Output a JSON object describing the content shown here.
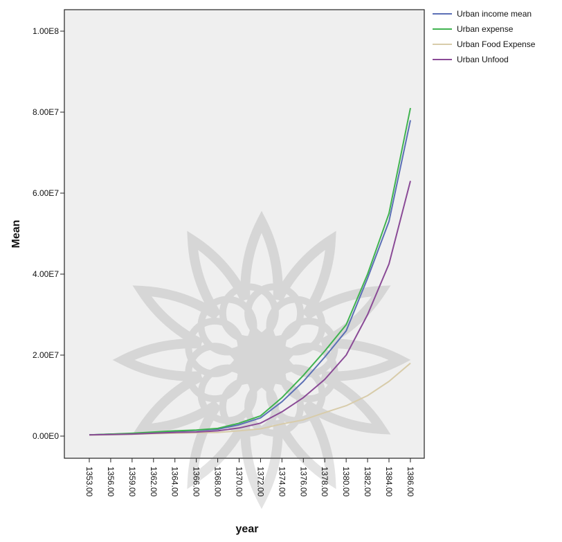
{
  "chart_data": {
    "type": "line",
    "title": "",
    "xlabel": "year",
    "ylabel": "Mean",
    "ylim": [
      0,
      100000000
    ],
    "y_ticks": [
      {
        "value": 0,
        "label": "0.00E0"
      },
      {
        "value": 20000000,
        "label": "2.00E7"
      },
      {
        "value": 40000000,
        "label": "4.00E7"
      },
      {
        "value": 60000000,
        "label": "6.00E7"
      },
      {
        "value": 80000000,
        "label": "8.00E7"
      },
      {
        "value": 100000000,
        "label": "1.00E8"
      }
    ],
    "x": [
      1353,
      1356,
      1359,
      1362,
      1364,
      1366,
      1368,
      1370,
      1372,
      1374,
      1376,
      1378,
      1380,
      1382,
      1384,
      1386
    ],
    "x_tick_labels": [
      "1353.00",
      "1356.00",
      "1359.00",
      "1362.00",
      "1364.00",
      "1366.00",
      "1368.00",
      "1370.00",
      "1372.00",
      "1374.00",
      "1376.00",
      "1378.00",
      "1380.00",
      "1382.00",
      "1384.00",
      "1386.00"
    ],
    "grid": false,
    "plot_background": "#efefef",
    "legend_position": "top-right",
    "series": [
      {
        "name": "Urban income mean",
        "color": "#5b6fb5",
        "values": [
          300000,
          500000,
          600000,
          900000,
          1200000,
          1400000,
          1700000,
          2800000,
          4500000,
          8500000,
          13500000,
          19500000,
          26000000,
          39000000,
          53000000,
          78000000
        ]
      },
      {
        "name": "Urban expense",
        "color": "#3fb34f",
        "values": [
          300000,
          500000,
          700000,
          1000000,
          1300000,
          1500000,
          1900000,
          3200000,
          5000000,
          9500000,
          15000000,
          21000000,
          27500000,
          40000000,
          55000000,
          81000000
        ]
      },
      {
        "name": "Urban Food Expense",
        "color": "#d8ccaa",
        "values": [
          250000,
          350000,
          450000,
          600000,
          700000,
          800000,
          900000,
          1300000,
          1800000,
          3000000,
          4000000,
          5800000,
          7500000,
          10000000,
          13500000,
          18000000
        ]
      },
      {
        "name": "Urban Unfood",
        "color": "#8a4a96",
        "values": [
          300000,
          400000,
          500000,
          700000,
          900000,
          1000000,
          1300000,
          2000000,
          3200000,
          6000000,
          9500000,
          14000000,
          20000000,
          30000000,
          42500000,
          63000000
        ]
      }
    ]
  }
}
